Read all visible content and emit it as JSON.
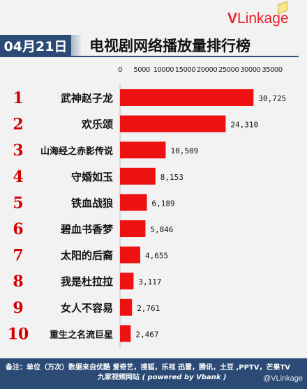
{
  "brand": {
    "logo_v": "V",
    "logo_rest": "Linkage"
  },
  "header": {
    "date": "04月21日",
    "title": "电视剧网络播放量排行榜"
  },
  "chart_data": {
    "type": "bar",
    "orientation": "horizontal",
    "ranks": [
      "1",
      "2",
      "3",
      "4",
      "5",
      "6",
      "7",
      "8",
      "9",
      "10"
    ],
    "categories": [
      "武神赵子龙",
      "欢乐颂",
      "山海经之赤影传说",
      "守婚如玉",
      "铁血战狼",
      "碧血书香梦",
      "太阳的后裔",
      "我是杜拉拉",
      "女人不容易",
      "重生之名流巨星"
    ],
    "values": [
      30725,
      24310,
      10509,
      8153,
      6189,
      5846,
      4655,
      3117,
      2761,
      2467
    ],
    "value_labels": [
      "30,725",
      "24,310",
      "10,509",
      "8,153",
      "6,189",
      "5,846",
      "4,655",
      "3,117",
      "2,761",
      "2,467"
    ],
    "xticks": [
      "0",
      "5000",
      "10000",
      "15000",
      "20000",
      "25000",
      "30000",
      "35000"
    ],
    "xlim": [
      0,
      35000
    ],
    "bar_color": "#ee1111",
    "rank_color": "#d40000"
  },
  "footer": {
    "line1": "备注：单位（万次）数据来自优酷 爱奇艺，搜狐，乐视  迅雷，腾讯，土豆 ,PPTV，芒果TV",
    "line2_prefix": "九家视频网站   ",
    "line2_powered": "( powered by Vbank )"
  },
  "watermark": "@VLinkage",
  "colors": {
    "header_bg": "#2b4a75",
    "accent": "#e8202a"
  }
}
